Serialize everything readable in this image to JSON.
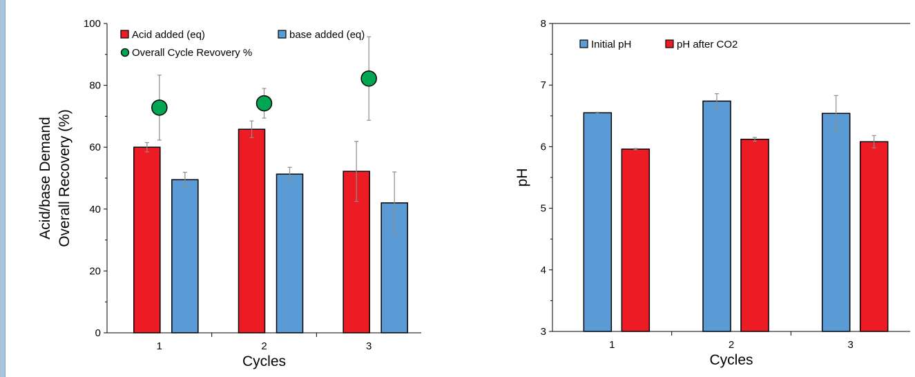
{
  "chart_data": [
    {
      "type": "bar",
      "title": "",
      "xlabel": "Cycles",
      "ylabel_lines": [
        "Acid/base Demand",
        "Overall Recovery (%)"
      ],
      "categories": [
        "1",
        "2",
        "3"
      ],
      "ylim": [
        0,
        100
      ],
      "yticks": [
        "0",
        "20",
        "40",
        "60",
        "80",
        "100"
      ],
      "legend_position": "top",
      "series": [
        {
          "name": "Acid added (eq)",
          "kind": "bar",
          "color": "#ed1c24",
          "values": [
            60,
            65.8,
            52.2
          ],
          "errors": [
            1.5,
            2.7,
            9.7
          ]
        },
        {
          "name": "base added (eq)",
          "kind": "bar",
          "color": "#5b9bd5",
          "values": [
            49.5,
            51.3,
            42
          ],
          "errors": [
            2.4,
            2.2,
            10
          ]
        },
        {
          "name": "Overall Cycle Revovery %",
          "kind": "marker",
          "color": "#00a651",
          "values": [
            72.8,
            74.2,
            82.2
          ],
          "errors": [
            10.5,
            4.8,
            13.5
          ]
        }
      ]
    },
    {
      "type": "bar",
      "title": "",
      "xlabel": "Cycles",
      "ylabel": "pH",
      "categories": [
        "1",
        "2",
        "3"
      ],
      "ylim": [
        3,
        8
      ],
      "yticks": [
        "3",
        "4",
        "5",
        "6",
        "7",
        "8"
      ],
      "legend_position": "top-left",
      "series": [
        {
          "name": "Initial pH",
          "kind": "bar",
          "color": "#5b9bd5",
          "values": [
            6.55,
            6.74,
            6.54
          ],
          "errors": [
            0.01,
            0.12,
            0.29
          ]
        },
        {
          "name": "pH after CO2",
          "kind": "bar",
          "color": "#ed1c24",
          "values": [
            5.96,
            6.12,
            6.08
          ],
          "errors": [
            0.01,
            0.03,
            0.1
          ]
        }
      ]
    }
  ]
}
